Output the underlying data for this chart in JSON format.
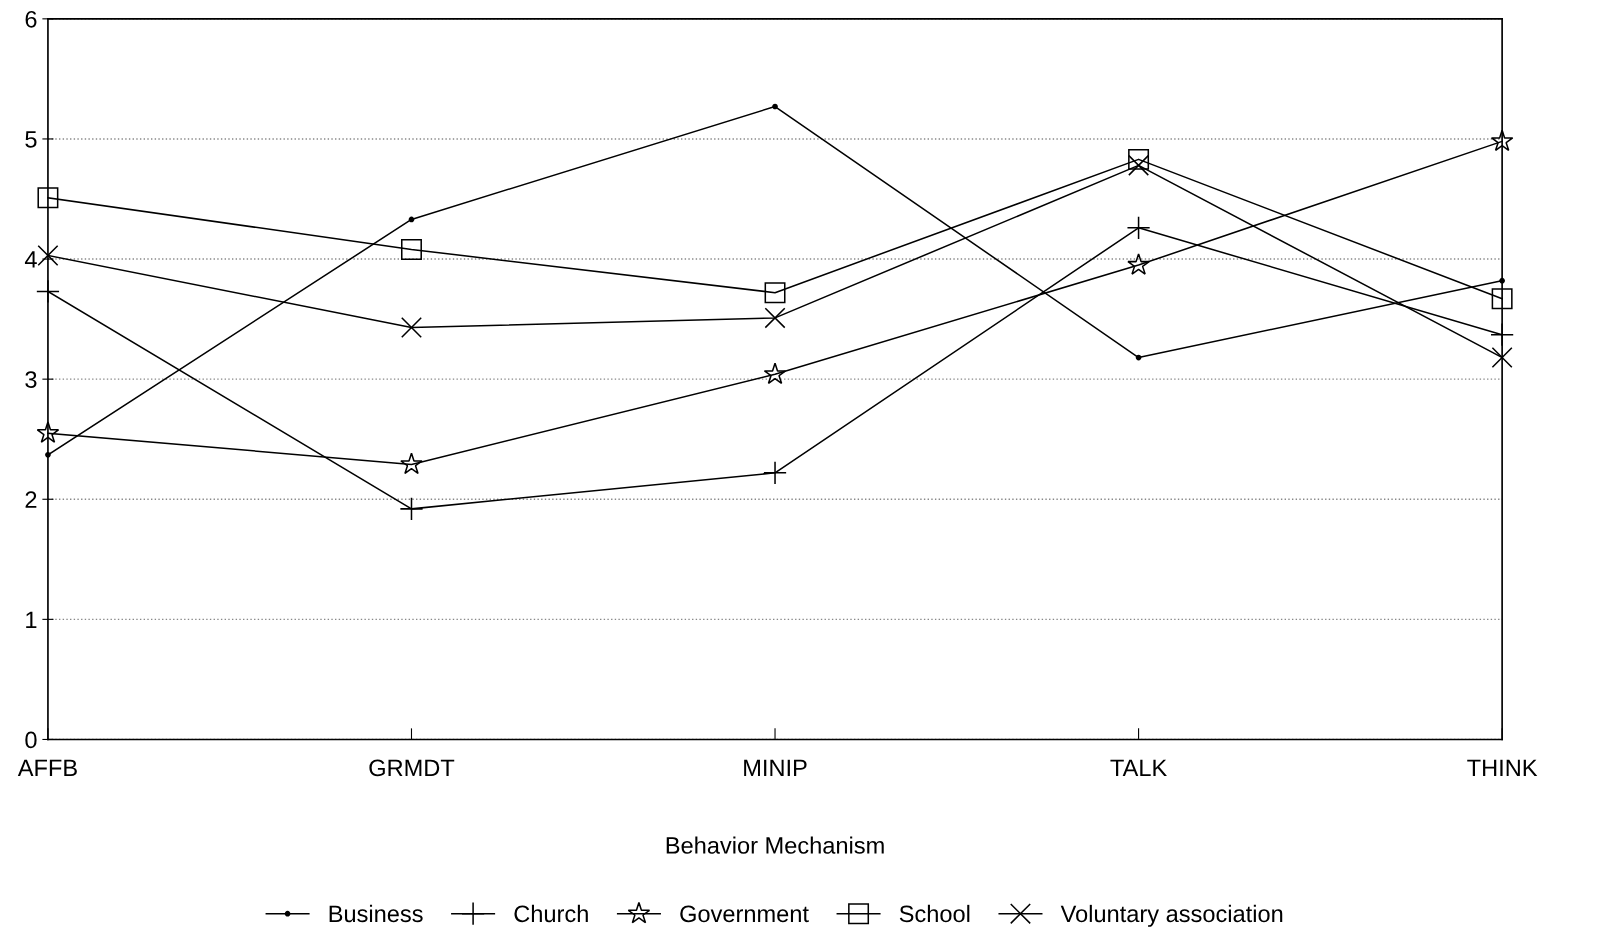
{
  "chart_data": {
    "type": "line",
    "xlabel": "Behavior Mechanism",
    "categories": [
      "AFFB",
      "GRMDT",
      "MINIP",
      "TALK",
      "THINK"
    ],
    "ylim": [
      0,
      6
    ],
    "yticks": [
      0,
      1,
      2,
      3,
      4,
      5,
      6
    ],
    "grid": "y",
    "legend": "bottom",
    "line_style": "solid",
    "series": [
      {
        "name": "Business",
        "color": "#000000",
        "marker": "circle",
        "values": [
          2.37,
          4.33,
          5.27,
          3.18,
          3.82
        ]
      },
      {
        "name": "Church",
        "color": "#000000",
        "marker": "cross",
        "values": [
          3.73,
          1.92,
          2.22,
          4.26,
          3.37
        ]
      },
      {
        "name": "Government",
        "color": "#000000",
        "marker": "star",
        "values": [
          2.55,
          2.29,
          3.04,
          3.95,
          4.98
        ]
      },
      {
        "name": "School",
        "color": "#000000",
        "marker": "square",
        "values": [
          4.51,
          4.08,
          3.72,
          4.83,
          3.67
        ]
      },
      {
        "name": "Voluntary association",
        "color": "#000000",
        "marker": "x",
        "values": [
          4.03,
          3.43,
          3.51,
          4.78,
          3.18
        ]
      }
    ]
  }
}
